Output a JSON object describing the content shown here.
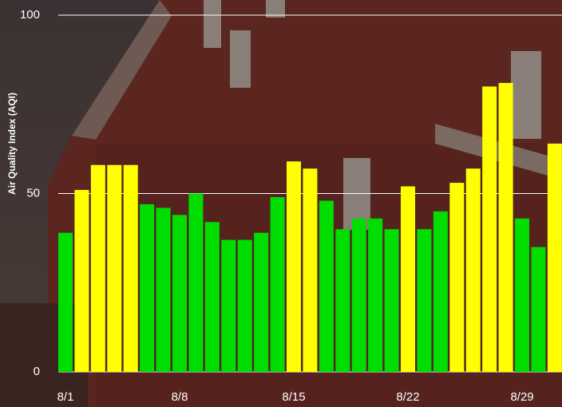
{
  "chart_data": {
    "type": "bar",
    "y_label": "Air Quality Index (AQI)",
    "categories": [
      "8/1",
      null,
      null,
      null,
      null,
      null,
      null,
      "8/8",
      null,
      null,
      null,
      null,
      null,
      null,
      "8/15",
      null,
      null,
      null,
      null,
      null,
      null,
      "8/22",
      null,
      null,
      null,
      null,
      null,
      null,
      "8/29",
      null,
      null
    ],
    "values": [
      39,
      51,
      58,
      58,
      58,
      47,
      46,
      44,
      50,
      42,
      37,
      37,
      39,
      49,
      59,
      57,
      48,
      40,
      43,
      43,
      40,
      52,
      40,
      45,
      53,
      57,
      80,
      81,
      43,
      35,
      64
    ],
    "colors": [
      "#00dd00",
      "#ffff00",
      "#ffff00",
      "#ffff00",
      "#ffff00",
      "#00dd00",
      "#00dd00",
      "#00dd00",
      "#00dd00",
      "#00dd00",
      "#00dd00",
      "#00dd00",
      "#00dd00",
      "#00dd00",
      "#ffff00",
      "#ffff00",
      "#00dd00",
      "#00dd00",
      "#00dd00",
      "#00dd00",
      "#00dd00",
      "#ffff00",
      "#00dd00",
      "#00dd00",
      "#ffff00",
      "#ffff00",
      "#ffff00",
      "#ffff00",
      "#00dd00",
      "#00dd00",
      "#ffff00"
    ],
    "ylim": [
      0,
      100
    ],
    "yticks": [
      0,
      50,
      100
    ],
    "grid": true
  }
}
